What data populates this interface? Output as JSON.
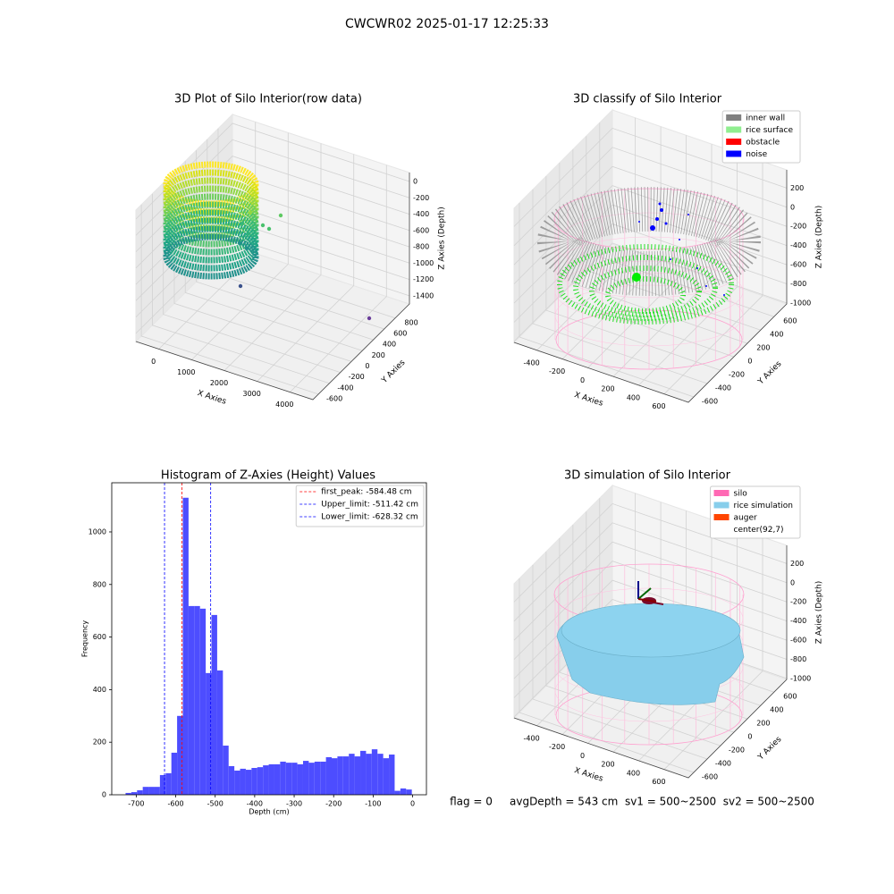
{
  "title": "CWCWR02 2025-01-17 12:25:33",
  "footer": "flag = 0     avgDepth = 543 cm  sv1 = 500~2500  sv2 = 500~2500",
  "chart_data": [
    {
      "type": "scatter3d",
      "title": "3D Plot of Silo Interior(row data)",
      "x_label": "X Axies",
      "y_label": "Y Axies",
      "z_label": "Z Axies (Depth)",
      "xlim": [
        -700,
        4700
      ],
      "ylim": [
        -700,
        1060
      ],
      "zlim": [
        -1500,
        110
      ],
      "xticks": [
        0,
        1000,
        2000,
        3000,
        4000
      ],
      "yticks": [
        -600,
        -400,
        -200,
        0,
        200,
        400,
        600,
        800
      ],
      "zticks": [
        0,
        -200,
        -400,
        -600,
        -800,
        -1000,
        -1200,
        -1400
      ]
    },
    {
      "type": "scatter3d",
      "title": "3D classify of Silo Interior",
      "x_label": "X Axies",
      "y_label": "Y Axies",
      "z_label": "Z Axies (Depth)",
      "xlim": [
        -580,
        790
      ],
      "ylim": [
        -680,
        790
      ],
      "zlim": [
        -1010,
        390
      ],
      "xticks": [
        -400,
        -200,
        0,
        200,
        400,
        600
      ],
      "yticks": [
        -600,
        -400,
        -200,
        0,
        200,
        400,
        600
      ],
      "zticks": [
        200,
        0,
        -200,
        -400,
        -600,
        -800,
        -1000
      ],
      "legend_loc": "upper right",
      "legend": [
        {
          "name": "inner wall",
          "color": "#808080"
        },
        {
          "name": "rice surface",
          "color": "#90ee90"
        },
        {
          "name": "obstacle",
          "color": "#ff0000"
        },
        {
          "name": "noise",
          "color": "#0000ff"
        }
      ]
    },
    {
      "type": "histogram",
      "title": "Histogram of Z-Axies (Height) Values",
      "x_label": "Depth (cm)",
      "y_label": "Frequency",
      "color": "#4d4dff",
      "bins": [
        -727,
        -712.5,
        -698,
        -683.5,
        -669,
        -654.5,
        -640,
        -625.5,
        -611,
        -596.5,
        -582,
        -567.5,
        -553,
        -538.5,
        -524,
        -509.5,
        -495,
        -480.5,
        -466,
        -451.5,
        -437,
        -422.5,
        -408,
        -393.5,
        -379,
        -364.5,
        -350,
        -335.5,
        -321,
        -306.5,
        -292,
        -277.5,
        -263,
        -248.5,
        -234,
        -219.5,
        -205,
        -190.5,
        -176,
        -161.5,
        -147,
        -132.5,
        -118,
        -103.5,
        -89,
        -74.5,
        -60,
        -45.5,
        -31,
        -16.5,
        -2
      ],
      "values": [
        7,
        10,
        17,
        30,
        30,
        30,
        75,
        82,
        160,
        300,
        1130,
        718,
        718,
        708,
        463,
        684,
        473,
        187,
        109,
        92,
        99,
        95,
        102,
        105,
        112,
        116,
        116,
        126,
        122,
        122,
        116,
        129,
        122,
        126,
        126,
        143,
        139,
        146,
        146,
        156,
        146,
        167,
        156,
        173,
        156,
        139,
        153,
        15,
        24,
        20
      ],
      "xlim": [
        -762,
        35
      ],
      "ylim": [
        0,
        1187
      ],
      "xticks": [
        -700,
        -600,
        -500,
        -400,
        -300,
        -200,
        -100,
        0
      ],
      "yticks": [
        0,
        200,
        400,
        600,
        800,
        1000
      ],
      "legend_loc": "upper right",
      "vlines": [
        {
          "label": "first_peak: -584.48 cm",
          "value": -584.48,
          "color": "#ff0000"
        },
        {
          "label": "Upper_limit: -511.42 cm",
          "value": -511.42,
          "color": "#0000ff"
        },
        {
          "label": "Lower_limit: -628.32 cm",
          "value": -628.32,
          "color": "#0000ff"
        }
      ]
    },
    {
      "type": "surface3d",
      "title": "3D simulation of Silo Interior",
      "x_label": "X Axies",
      "y_label": "Y Axies",
      "z_label": "Z Axies (Depth)",
      "xlim": [
        -580,
        790
      ],
      "ylim": [
        -680,
        790
      ],
      "zlim": [
        -1010,
        390
      ],
      "xticks": [
        -400,
        -200,
        0,
        200,
        400,
        600
      ],
      "yticks": [
        -600,
        -400,
        -200,
        0,
        200,
        400,
        600
      ],
      "zticks": [
        200,
        0,
        -200,
        -400,
        -600,
        -800,
        -1000
      ],
      "legend_loc": "upper right",
      "legend": [
        {
          "name": "silo",
          "color": "#ff69b4"
        },
        {
          "name": "rice simulation",
          "color": "#87ceeb"
        },
        {
          "name": "auger",
          "color": "#ff4500"
        },
        {
          "name": "center(92,7)",
          "color": "#ffffff"
        }
      ]
    }
  ]
}
